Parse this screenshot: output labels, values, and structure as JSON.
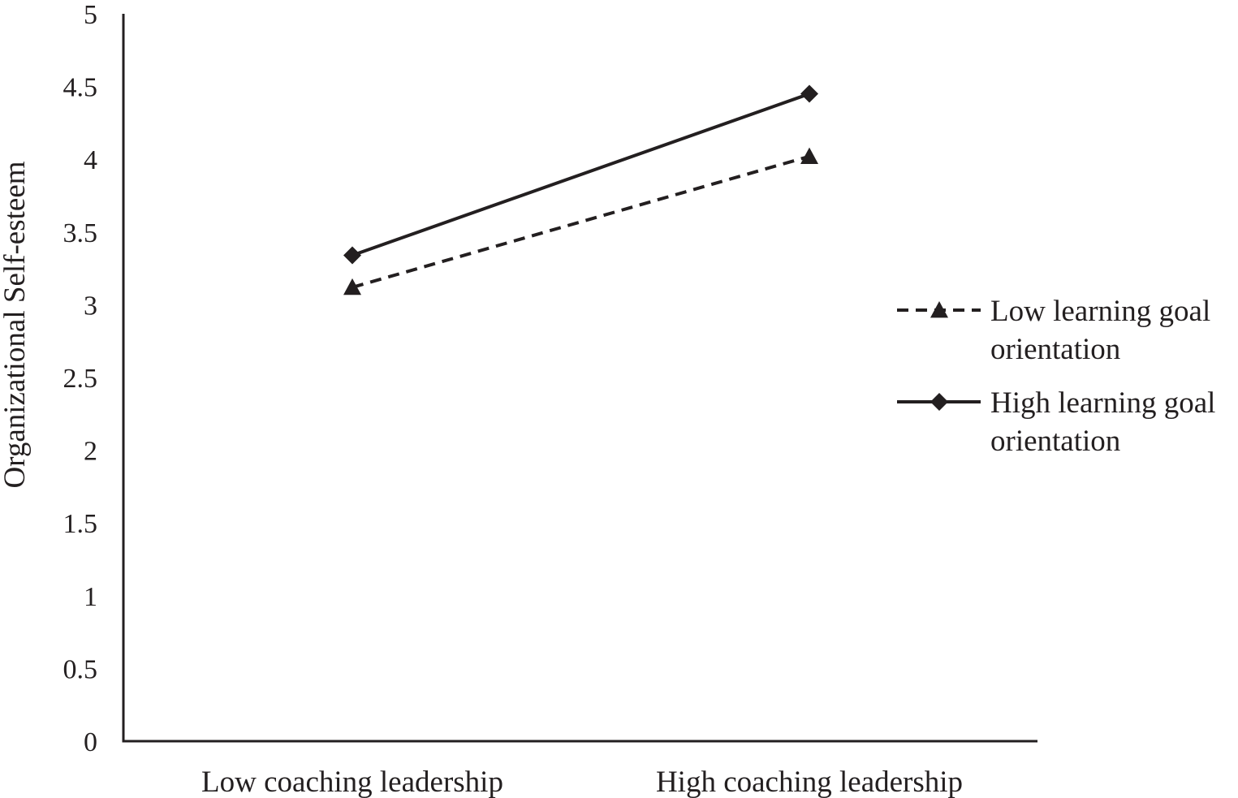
{
  "chart_data": {
    "type": "line",
    "title": "",
    "xlabel": "",
    "ylabel": "Organizational Self-esteem",
    "ylim": [
      0,
      5
    ],
    "yticks": [
      "0",
      "0.5",
      "1",
      "1.5",
      "2",
      "2.5",
      "3",
      "3.5",
      "4",
      "4.5",
      "5"
    ],
    "categories": [
      "Low coaching leadership",
      "High coaching leadership"
    ],
    "grid": false,
    "legend_position": "right",
    "series": [
      {
        "name": "Low learning goal orientation",
        "legend_lines": [
          "Low learning goal",
          "orientation"
        ],
        "values": [
          3.12,
          4.02
        ],
        "line_style": "dashed",
        "marker": "triangle",
        "color": "#231f20"
      },
      {
        "name": "High learning goal orientation",
        "legend_lines": [
          "High learning goal",
          "orientation"
        ],
        "values": [
          3.34,
          4.45
        ],
        "line_style": "solid",
        "marker": "diamond",
        "color": "#231f20"
      }
    ]
  }
}
